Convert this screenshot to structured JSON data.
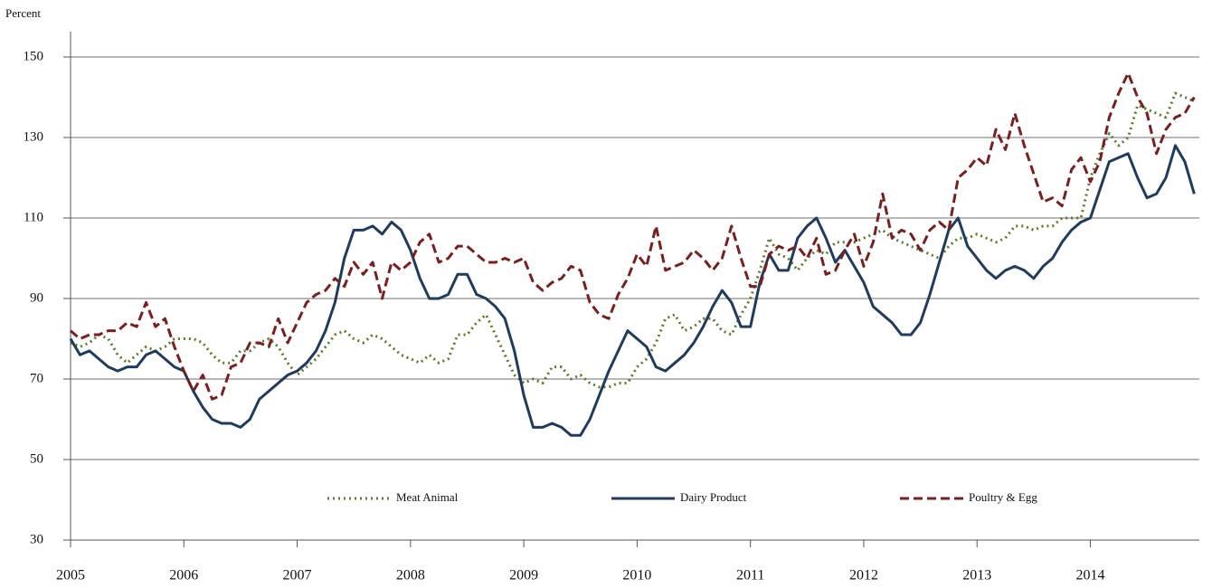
{
  "chart_data": {
    "type": "line",
    "y_label": "Percent",
    "categories": [
      "2005",
      null,
      null,
      null,
      null,
      null,
      null,
      null,
      null,
      null,
      null,
      null,
      "2006",
      null,
      null,
      null,
      null,
      null,
      null,
      null,
      null,
      null,
      null,
      null,
      "2007",
      null,
      null,
      null,
      null,
      null,
      null,
      null,
      null,
      null,
      null,
      null,
      "2008",
      null,
      null,
      null,
      null,
      null,
      null,
      null,
      null,
      null,
      null,
      null,
      "2009",
      null,
      null,
      null,
      null,
      null,
      null,
      null,
      null,
      null,
      null,
      null,
      "2010",
      null,
      null,
      null,
      null,
      null,
      null,
      null,
      null,
      null,
      null,
      null,
      "2011",
      null,
      null,
      null,
      null,
      null,
      null,
      null,
      null,
      null,
      null,
      null,
      "2012",
      null,
      null,
      null,
      null,
      null,
      null,
      null,
      null,
      null,
      null,
      null,
      "2013",
      null,
      null,
      null,
      null,
      null,
      null,
      null,
      null,
      null,
      null,
      null,
      "2014",
      null,
      null,
      null,
      null,
      null,
      null,
      null,
      null,
      null,
      null,
      null
    ],
    "series": [
      {
        "name": "Meat Animal",
        "color": "#5b7a2c",
        "dash": "dotted",
        "values": [
          79,
          78,
          79,
          81,
          80,
          76,
          74,
          76,
          78,
          77,
          78,
          80,
          80,
          80,
          79,
          76,
          74,
          74,
          77,
          77,
          79,
          80,
          78,
          74,
          71,
          73,
          75,
          78,
          81,
          82,
          80,
          79,
          81,
          80,
          78,
          76,
          75,
          74,
          76,
          74,
          75,
          81,
          81,
          84,
          86,
          81,
          76,
          71,
          69,
          70,
          69,
          73,
          73,
          70,
          71,
          69,
          68,
          68,
          69,
          69,
          73,
          75,
          79,
          85,
          86,
          82,
          83,
          85,
          85,
          82,
          81,
          86,
          90,
          97,
          105,
          101,
          100,
          97,
          100,
          102,
          101,
          104,
          104,
          104,
          105,
          106,
          107,
          105,
          104,
          103,
          102,
          101,
          100,
          103,
          105,
          105,
          106,
          105,
          104,
          105,
          108,
          108,
          107,
          108,
          108,
          110,
          110,
          110,
          120,
          126,
          131,
          128,
          130,
          138,
          137,
          136,
          135,
          141,
          140,
          139
        ]
      },
      {
        "name": "Dairy Product",
        "color": "#1f3b5e",
        "dash": "solid",
        "values": [
          80,
          76,
          77,
          75,
          73,
          72,
          73,
          73,
          76,
          77,
          75,
          73,
          72,
          67,
          63,
          60,
          59,
          59,
          58,
          60,
          65,
          67,
          69,
          71,
          72,
          74,
          77,
          82,
          89,
          100,
          107,
          107,
          108,
          106,
          109,
          107,
          102,
          95,
          90,
          90,
          91,
          96,
          96,
          91,
          90,
          88,
          85,
          77,
          66,
          58,
          58,
          59,
          58,
          56,
          56,
          60,
          66,
          72,
          77,
          82,
          80,
          78,
          73,
          72,
          74,
          76,
          79,
          83,
          88,
          92,
          89,
          83,
          83,
          94,
          101,
          97,
          97,
          105,
          108,
          110,
          105,
          99,
          102,
          98,
          94,
          88,
          86,
          84,
          81,
          81,
          84,
          91,
          99,
          107,
          110,
          103,
          100,
          97,
          95,
          97,
          98,
          97,
          95,
          98,
          100,
          104,
          107,
          109,
          110,
          117,
          124,
          125,
          126,
          120,
          115,
          116,
          120,
          128,
          124,
          116
        ]
      },
      {
        "name": "Poultry & Egg",
        "color": "#7a1f20",
        "dash": "dashed",
        "values": [
          82,
          80,
          81,
          81,
          82,
          82,
          84,
          83,
          89,
          83,
          85,
          78,
          72,
          67,
          71,
          65,
          66,
          73,
          74,
          79,
          79,
          78,
          85,
          79,
          84,
          89,
          91,
          92,
          95,
          93,
          99,
          96,
          99,
          90,
          99,
          97,
          99,
          104,
          106,
          99,
          100,
          103,
          103,
          101,
          99,
          99,
          100,
          99,
          100,
          94,
          92,
          94,
          95,
          98,
          97,
          89,
          86,
          85,
          91,
          95,
          101,
          98,
          108,
          97,
          98,
          99,
          102,
          100,
          97,
          100,
          108,
          100,
          93,
          93,
          101,
          103,
          102,
          103,
          100,
          105,
          96,
          97,
          102,
          106,
          98,
          104,
          116,
          105,
          107,
          106,
          102,
          107,
          109,
          107,
          120,
          122,
          125,
          123,
          132,
          127,
          136,
          128,
          121,
          114,
          115,
          113,
          122,
          125,
          119,
          124,
          135,
          141,
          146,
          140,
          136,
          126,
          132,
          135,
          136,
          140
        ]
      }
    ],
    "ylim": [
      30,
      150
    ],
    "yticks": [
      30,
      50,
      70,
      90,
      110,
      130,
      150
    ],
    "grid": true,
    "legend": "bottom"
  }
}
